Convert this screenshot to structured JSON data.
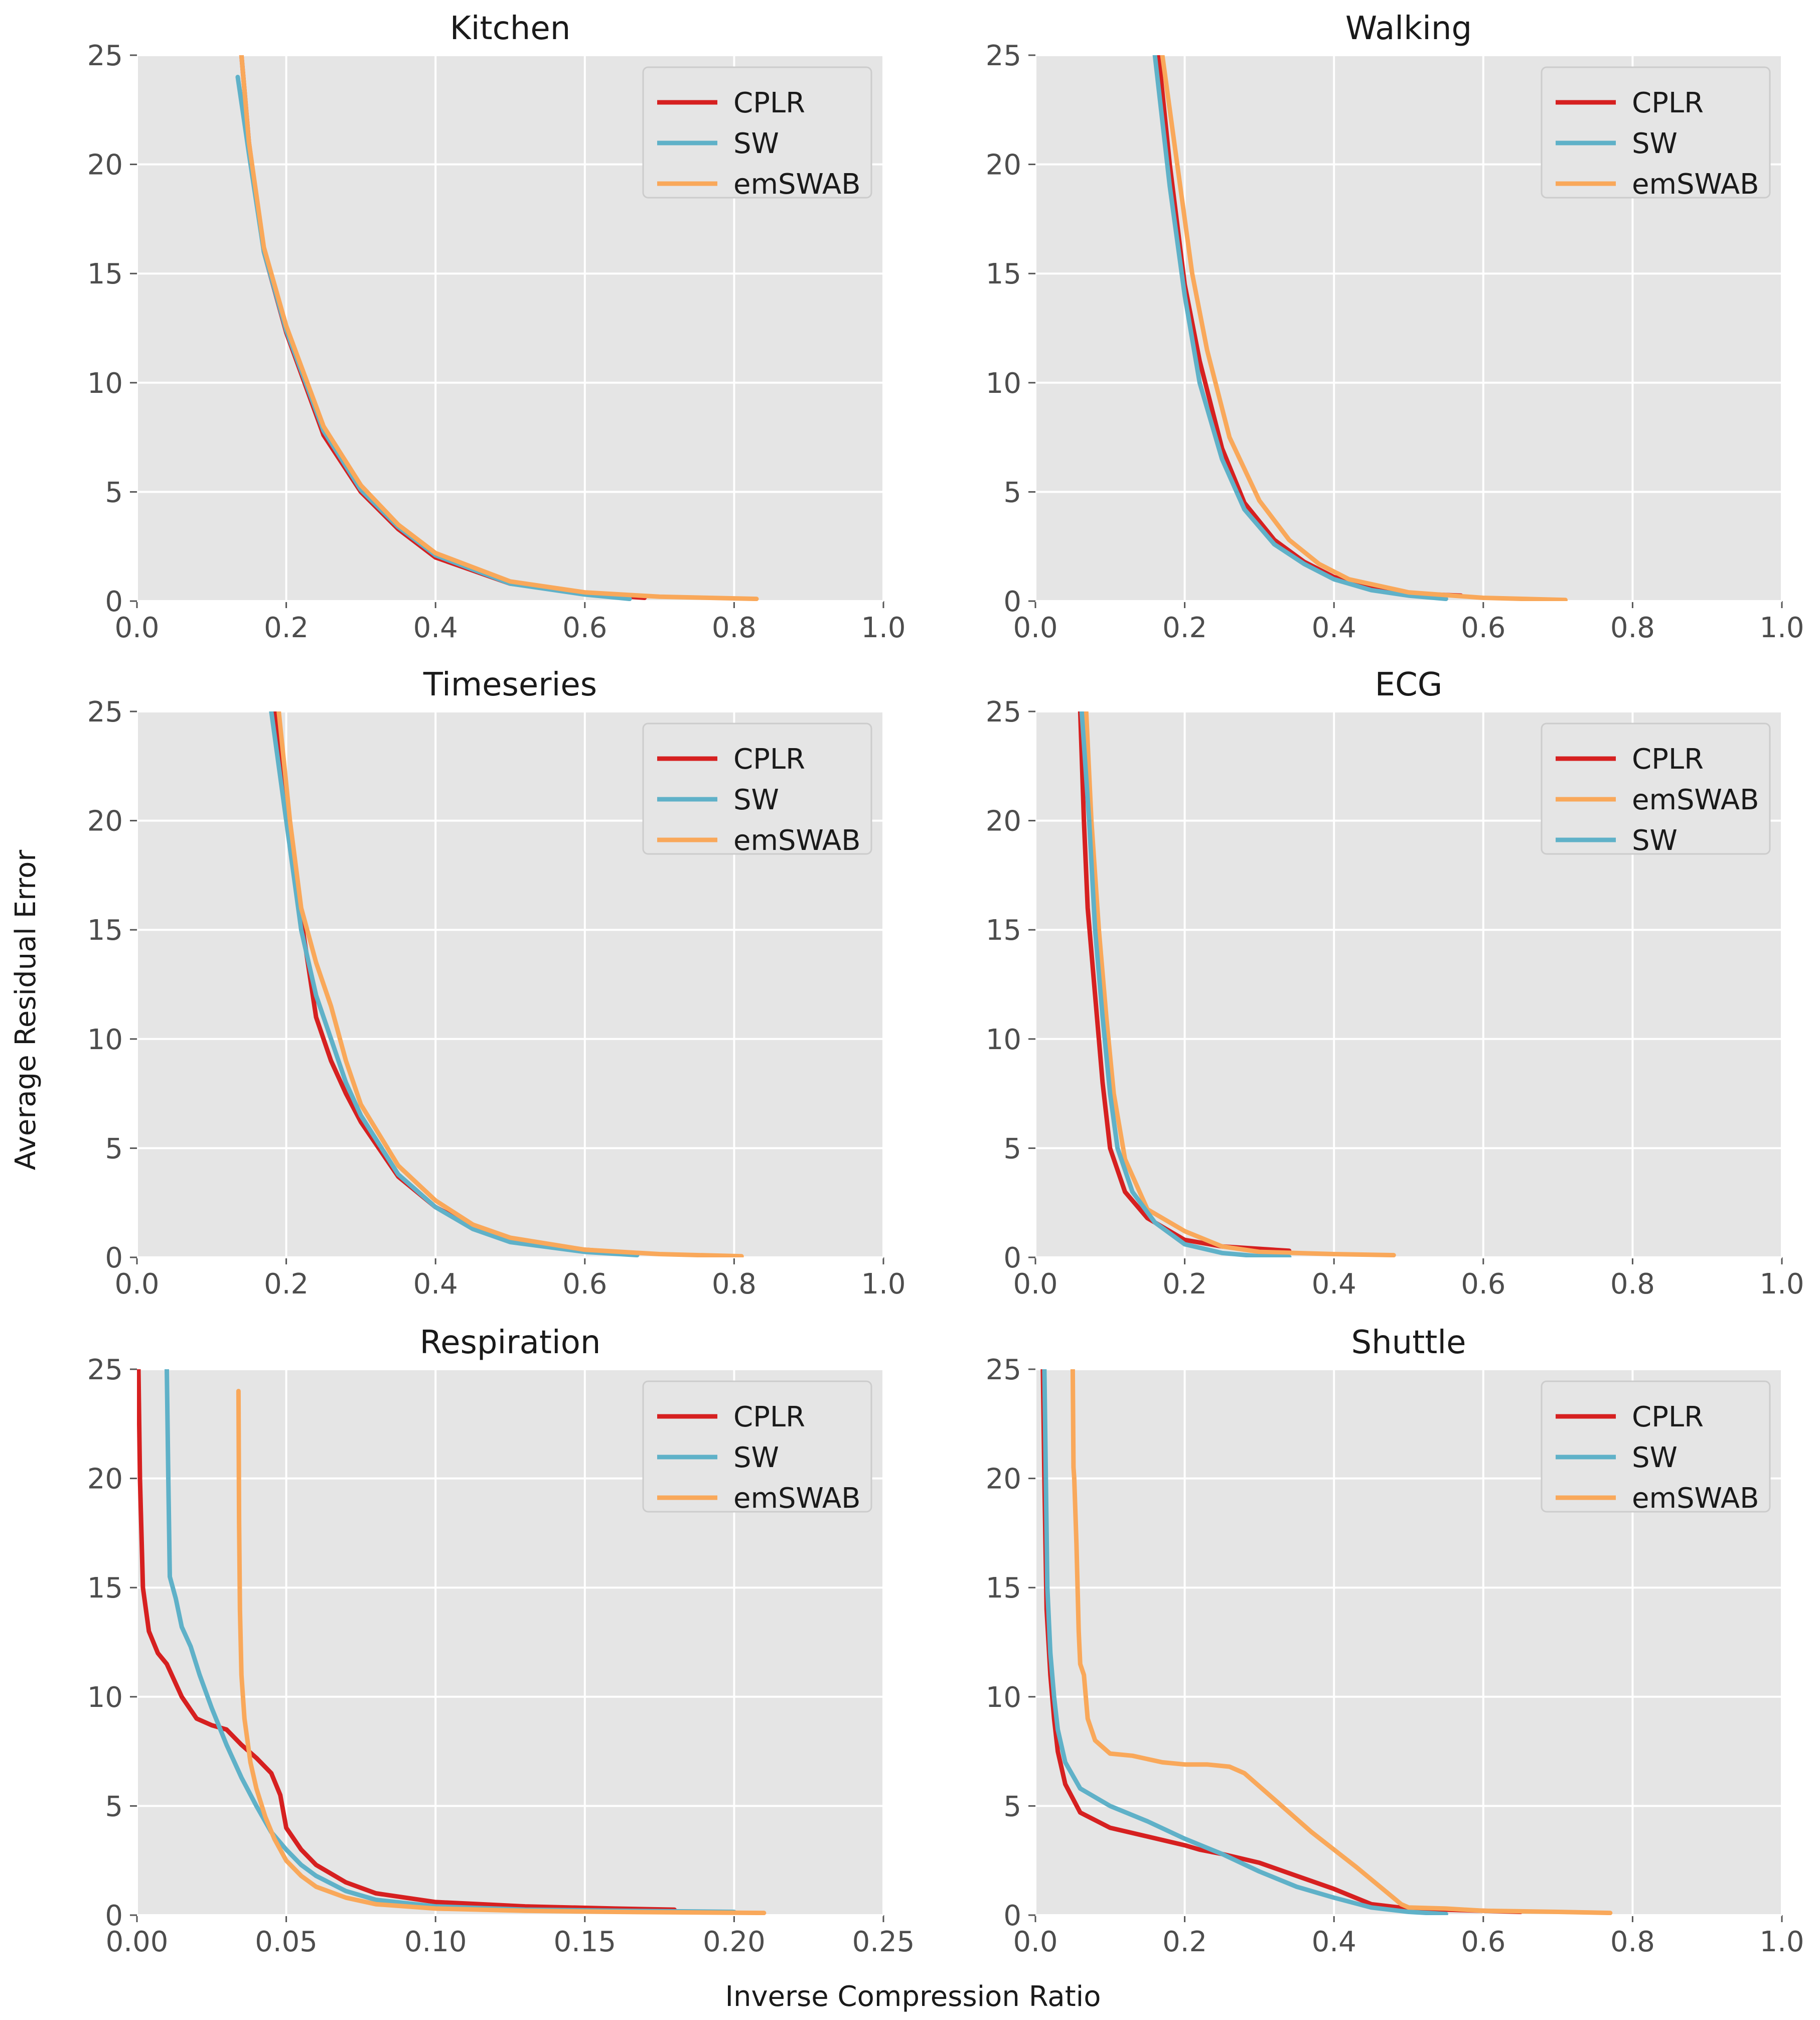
{
  "figure": {
    "xlabel": "Inverse Compression Ratio",
    "ylabel": "Average Residual Error"
  },
  "colors": {
    "CPLR": "#d62020",
    "SW": "#5fb1c8",
    "emSWAB": "#f9a85a",
    "panel_bg": "#e5e5e5",
    "grid": "#ffffff"
  },
  "chart_data": [
    {
      "type": "line",
      "title": "Kitchen",
      "xlim": [
        0,
        1
      ],
      "ylim": [
        0,
        25
      ],
      "xticks": [
        "0.0",
        "0.2",
        "0.4",
        "0.6",
        "0.8",
        "1.0"
      ],
      "yticks": [
        "0",
        "5",
        "10",
        "15",
        "20",
        "25"
      ],
      "legend": [
        "CPLR",
        "SW",
        "emSWAB"
      ],
      "series": [
        {
          "name": "CPLR",
          "x": [
            0.14,
            0.15,
            0.17,
            0.2,
            0.25,
            0.3,
            0.35,
            0.4,
            0.5,
            0.6,
            0.68
          ],
          "y": [
            25,
            21,
            16,
            12.3,
            7.6,
            5.0,
            3.3,
            2.0,
            0.8,
            0.35,
            0.15
          ]
        },
        {
          "name": "SW",
          "x": [
            0.135,
            0.15,
            0.17,
            0.2,
            0.25,
            0.3,
            0.35,
            0.4,
            0.5,
            0.6,
            0.66
          ],
          "y": [
            24,
            20.5,
            16,
            12.4,
            7.8,
            5.1,
            3.4,
            2.1,
            0.8,
            0.3,
            0.1
          ]
        },
        {
          "name": "emSWAB",
          "x": [
            0.14,
            0.15,
            0.17,
            0.2,
            0.25,
            0.3,
            0.35,
            0.4,
            0.5,
            0.6,
            0.7,
            0.83
          ],
          "y": [
            25,
            21,
            16.2,
            12.6,
            8.0,
            5.3,
            3.5,
            2.2,
            0.9,
            0.4,
            0.2,
            0.1
          ]
        }
      ]
    },
    {
      "type": "line",
      "title": "Walking",
      "xlim": [
        0,
        1
      ],
      "ylim": [
        0,
        25
      ],
      "xticks": [
        "0.0",
        "0.2",
        "0.4",
        "0.6",
        "0.8",
        "1.0"
      ],
      "yticks": [
        "0",
        "5",
        "10",
        "15",
        "20",
        "25"
      ],
      "legend": [
        "CPLR",
        "SW",
        "emSWAB"
      ],
      "series": [
        {
          "name": "CPLR",
          "x": [
            0.165,
            0.18,
            0.2,
            0.22,
            0.25,
            0.28,
            0.32,
            0.36,
            0.4,
            0.45,
            0.5,
            0.57
          ],
          "y": [
            25,
            20,
            14.5,
            11,
            7,
            4.5,
            2.8,
            1.8,
            1.1,
            0.6,
            0.35,
            0.25
          ]
        },
        {
          "name": "SW",
          "x": [
            0.16,
            0.18,
            0.2,
            0.22,
            0.25,
            0.28,
            0.32,
            0.36,
            0.4,
            0.45,
            0.5,
            0.55
          ],
          "y": [
            25,
            19,
            14,
            10,
            6.5,
            4.2,
            2.6,
            1.7,
            1.0,
            0.5,
            0.25,
            0.1
          ]
        },
        {
          "name": "emSWAB",
          "x": [
            0.17,
            0.19,
            0.21,
            0.23,
            0.26,
            0.3,
            0.34,
            0.38,
            0.42,
            0.5,
            0.6,
            0.71
          ],
          "y": [
            25,
            20,
            15,
            11.5,
            7.5,
            4.6,
            2.8,
            1.7,
            1.0,
            0.4,
            0.15,
            0.05
          ]
        }
      ]
    },
    {
      "type": "line",
      "title": "Timeseries",
      "xlim": [
        0,
        1
      ],
      "ylim": [
        0,
        25
      ],
      "xticks": [
        "0.0",
        "0.2",
        "0.4",
        "0.6",
        "0.8",
        "1.0"
      ],
      "yticks": [
        "0",
        "5",
        "10",
        "15",
        "20",
        "25"
      ],
      "legend": [
        "CPLR",
        "SW",
        "emSWAB"
      ],
      "series": [
        {
          "name": "CPLR",
          "x": [
            0.185,
            0.2,
            0.22,
            0.24,
            0.26,
            0.28,
            0.3,
            0.35,
            0.4,
            0.45,
            0.5,
            0.6,
            0.66
          ],
          "y": [
            25,
            20.5,
            15.5,
            11,
            9,
            7.5,
            6.2,
            3.7,
            2.3,
            1.4,
            0.8,
            0.35,
            0.2
          ]
        },
        {
          "name": "SW",
          "x": [
            0.18,
            0.2,
            0.22,
            0.24,
            0.26,
            0.28,
            0.3,
            0.35,
            0.4,
            0.45,
            0.5,
            0.6,
            0.67
          ],
          "y": [
            25,
            20,
            15,
            12,
            10,
            8,
            6.5,
            3.8,
            2.3,
            1.3,
            0.7,
            0.25,
            0.1
          ]
        },
        {
          "name": "emSWAB",
          "x": [
            0.19,
            0.205,
            0.22,
            0.24,
            0.26,
            0.28,
            0.3,
            0.35,
            0.4,
            0.45,
            0.5,
            0.6,
            0.7,
            0.81
          ],
          "y": [
            25,
            20,
            16,
            13.5,
            11.5,
            9,
            7,
            4.2,
            2.6,
            1.5,
            0.9,
            0.35,
            0.15,
            0.05
          ]
        }
      ]
    },
    {
      "type": "line",
      "title": "ECG",
      "xlim": [
        0,
        1
      ],
      "ylim": [
        0,
        25
      ],
      "xticks": [
        "0.0",
        "0.2",
        "0.4",
        "0.6",
        "0.8",
        "1.0"
      ],
      "yticks": [
        "0",
        "5",
        "10",
        "15",
        "20",
        "25"
      ],
      "legend": [
        "CPLR",
        "emSWAB",
        "SW"
      ],
      "series": [
        {
          "name": "CPLR",
          "x": [
            0.06,
            0.065,
            0.07,
            0.08,
            0.09,
            0.1,
            0.12,
            0.15,
            0.2,
            0.25,
            0.34
          ],
          "y": [
            25,
            20,
            16,
            12,
            8,
            5,
            3,
            1.8,
            0.8,
            0.5,
            0.3
          ]
        },
        {
          "name": "emSWAB",
          "x": [
            0.068,
            0.075,
            0.085,
            0.095,
            0.105,
            0.12,
            0.15,
            0.2,
            0.25,
            0.3,
            0.4,
            0.48
          ],
          "y": [
            25,
            20,
            15,
            11,
            7.5,
            4.5,
            2.2,
            1.2,
            0.5,
            0.25,
            0.15,
            0.1
          ]
        },
        {
          "name": "SW",
          "x": [
            0.062,
            0.072,
            0.08,
            0.09,
            0.1,
            0.11,
            0.13,
            0.16,
            0.2,
            0.25,
            0.3,
            0.34
          ],
          "y": [
            25,
            20,
            15,
            11,
            7.5,
            5,
            3,
            1.6,
            0.6,
            0.2,
            0.05,
            0.02
          ]
        }
      ]
    },
    {
      "type": "line",
      "title": "Respiration",
      "xlim": [
        0,
        0.25
      ],
      "ylim": [
        0,
        25
      ],
      "xticks": [
        "0.00",
        "0.05",
        "0.10",
        "0.15",
        "0.20",
        "0.25"
      ],
      "yticks": [
        "0",
        "5",
        "10",
        "15",
        "20",
        "25"
      ],
      "legend": [
        "CPLR",
        "SW",
        "emSWAB"
      ],
      "series": [
        {
          "name": "CPLR",
          "x": [
            0.0005,
            0.001,
            0.002,
            0.004,
            0.007,
            0.01,
            0.015,
            0.02,
            0.025,
            0.03,
            0.035,
            0.04,
            0.045,
            0.048,
            0.05,
            0.055,
            0.06,
            0.07,
            0.08,
            0.1,
            0.13,
            0.16,
            0.18
          ],
          "y": [
            25,
            20,
            15,
            13,
            12,
            11.5,
            10,
            9,
            8.7,
            8.5,
            7.8,
            7.2,
            6.5,
            5.5,
            4,
            3,
            2.3,
            1.5,
            1.0,
            0.6,
            0.4,
            0.3,
            0.25
          ]
        },
        {
          "name": "SW",
          "x": [
            0.01,
            0.0105,
            0.011,
            0.013,
            0.015,
            0.018,
            0.021,
            0.025,
            0.03,
            0.035,
            0.04,
            0.045,
            0.05,
            0.055,
            0.06,
            0.07,
            0.08,
            0.1,
            0.13,
            0.16,
            0.2
          ],
          "y": [
            25,
            20,
            15.5,
            14.5,
            13.2,
            12.3,
            11,
            9.5,
            7.8,
            6.3,
            5,
            3.8,
            3,
            2.3,
            1.8,
            1.1,
            0.7,
            0.4,
            0.25,
            0.2,
            0.15
          ]
        },
        {
          "name": "emSWAB",
          "x": [
            0.034,
            0.0342,
            0.0345,
            0.035,
            0.036,
            0.038,
            0.04,
            0.043,
            0.046,
            0.05,
            0.055,
            0.06,
            0.07,
            0.08,
            0.1,
            0.13,
            0.16,
            0.21
          ],
          "y": [
            24,
            18,
            14,
            11,
            9,
            7,
            5.8,
            4.5,
            3.5,
            2.5,
            1.8,
            1.3,
            0.8,
            0.5,
            0.3,
            0.2,
            0.15,
            0.1
          ]
        }
      ]
    },
    {
      "type": "line",
      "title": "Shuttle",
      "xlim": [
        0,
        1
      ],
      "ylim": [
        0,
        25
      ],
      "xticks": [
        "0.0",
        "0.2",
        "0.4",
        "0.6",
        "0.8",
        "1.0"
      ],
      "yticks": [
        "0",
        "5",
        "10",
        "15",
        "20",
        "25"
      ],
      "legend": [
        "CPLR",
        "SW",
        "emSWAB"
      ],
      "series": [
        {
          "name": "CPLR",
          "x": [
            0.01,
            0.012,
            0.015,
            0.02,
            0.025,
            0.03,
            0.04,
            0.06,
            0.1,
            0.15,
            0.2,
            0.22,
            0.25,
            0.3,
            0.35,
            0.4,
            0.45,
            0.5,
            0.6,
            0.65
          ],
          "y": [
            25,
            20,
            14,
            11,
            9,
            7.5,
            6,
            4.7,
            4,
            3.6,
            3.2,
            3.0,
            2.8,
            2.4,
            1.8,
            1.2,
            0.5,
            0.3,
            0.2,
            0.15
          ]
        },
        {
          "name": "SW",
          "x": [
            0.012,
            0.014,
            0.016,
            0.02,
            0.025,
            0.03,
            0.04,
            0.06,
            0.1,
            0.15,
            0.2,
            0.25,
            0.3,
            0.35,
            0.4,
            0.45,
            0.5,
            0.55
          ],
          "y": [
            25,
            20,
            15,
            12,
            10,
            8.5,
            7,
            5.8,
            5,
            4.3,
            3.5,
            2.8,
            2.0,
            1.3,
            0.8,
            0.35,
            0.15,
            0.05
          ]
        },
        {
          "name": "emSWAB",
          "x": [
            0.05,
            0.051,
            0.052,
            0.055,
            0.058,
            0.06,
            0.065,
            0.07,
            0.08,
            0.1,
            0.13,
            0.17,
            0.2,
            0.23,
            0.26,
            0.28,
            0.32,
            0.37,
            0.43,
            0.49,
            0.5,
            0.55,
            0.6,
            0.7,
            0.77
          ],
          "y": [
            25,
            20.5,
            20,
            17,
            13,
            11.5,
            11,
            9,
            8,
            7.4,
            7.3,
            7.0,
            6.9,
            6.9,
            6.8,
            6.5,
            5.3,
            3.8,
            2.2,
            0.5,
            0.35,
            0.3,
            0.2,
            0.15,
            0.1
          ]
        }
      ]
    }
  ]
}
